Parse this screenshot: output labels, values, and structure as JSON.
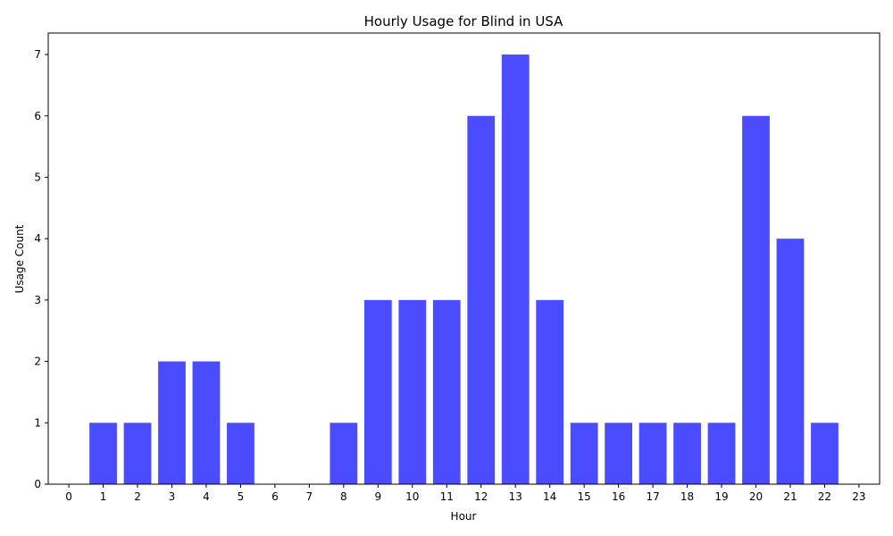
{
  "chart_data": {
    "type": "bar",
    "title": "Hourly Usage for Blind in USA",
    "xlabel": "Hour",
    "ylabel": "Usage Count",
    "categories": [
      "0",
      "1",
      "2",
      "3",
      "4",
      "5",
      "6",
      "7",
      "8",
      "9",
      "10",
      "11",
      "12",
      "13",
      "14",
      "15",
      "16",
      "17",
      "18",
      "19",
      "20",
      "21",
      "22",
      "23"
    ],
    "values": [
      0,
      1,
      1,
      2,
      2,
      1,
      0,
      0,
      1,
      3,
      3,
      3,
      6,
      7,
      3,
      1,
      1,
      1,
      1,
      1,
      6,
      4,
      1,
      0
    ],
    "xlim": [
      -0.6,
      23.6
    ],
    "ylim": [
      0,
      7.35
    ],
    "yticks": [
      0,
      1,
      2,
      3,
      4,
      5,
      6,
      7
    ],
    "bar_color": "#4b4bff",
    "grid": false,
    "legend": "none"
  }
}
